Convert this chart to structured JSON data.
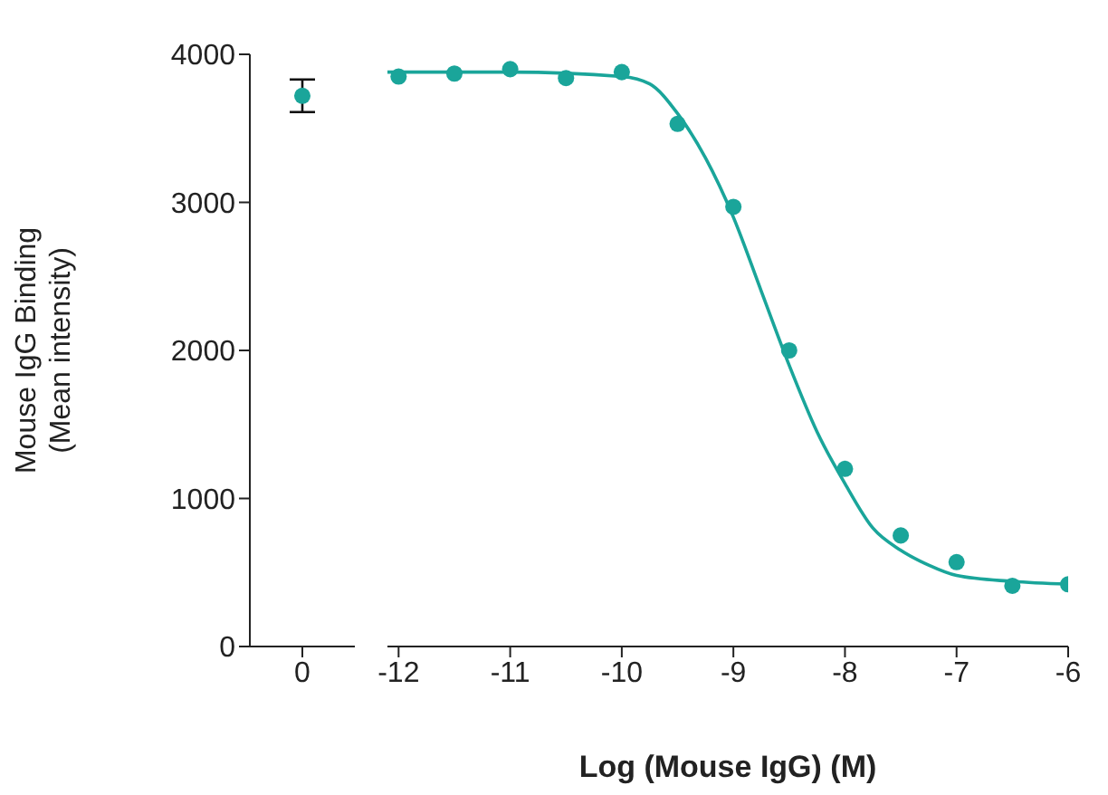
{
  "chart_data": [
    {
      "type": "scatter",
      "categories": [
        "0"
      ],
      "series": [
        {
          "color": "#1aa59a",
          "values": [
            3720
          ],
          "errors": [
            110
          ]
        }
      ],
      "ylim": [
        0,
        4000
      ],
      "yticks": [
        0,
        1000,
        2000,
        3000,
        4000
      ],
      "ylabel": "Mouse IgG Binding\n(Mean intensity)",
      "marker": "circle"
    },
    {
      "type": "scatter",
      "x": [
        -12,
        -11.5,
        -11,
        -10.5,
        -10,
        -9.5,
        -9,
        -8.5,
        -8,
        -7.5,
        -7,
        -6.5,
        -6
      ],
      "series": [
        {
          "color": "#1aa59a",
          "values": [
            3850,
            3870,
            3900,
            3840,
            3880,
            3530,
            2970,
            2000,
            1200,
            750,
            570,
            410,
            420
          ]
        },
        {
          "type": "line",
          "marker": "none",
          "color": "#1aa59a",
          "x": [
            -12.1,
            -11,
            -10,
            -9.75,
            -9.5,
            -9.25,
            -9,
            -8.75,
            -8.5,
            -8.25,
            -8,
            -7.75,
            -7.5,
            -7.25,
            -7,
            -6.5,
            -6
          ],
          "values": [
            3880,
            3880,
            3850,
            3800,
            3600,
            3300,
            2900,
            2400,
            1900,
            1450,
            1100,
            800,
            650,
            550,
            480,
            440,
            420
          ]
        }
      ],
      "xlim": [
        -12.1,
        -6
      ],
      "xticks": [
        -12,
        -11,
        -10,
        -9,
        -8,
        -7,
        -6
      ],
      "ylim": [
        0,
        4000
      ],
      "yticks": [
        0,
        1000,
        2000,
        3000,
        4000
      ],
      "tick_labels": "x",
      "xlabel": "Log (Mouse IgG) (M)",
      "marker": "circle"
    }
  ]
}
